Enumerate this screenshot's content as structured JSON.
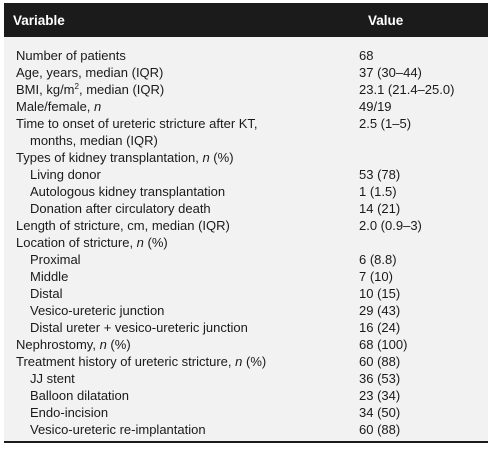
{
  "table": {
    "headers": {
      "variable": "Variable",
      "value": "Value"
    },
    "rows": [
      {
        "label": "Number of patients",
        "value": "68"
      },
      {
        "label_pre": "Age, years, median (IQR)",
        "value": "37 (30–44)"
      },
      {
        "label_pre": "BMI, kg/m",
        "label_sup": "2",
        "label_post": ", median (IQR)",
        "value": "23.1 (21.4–25.0)"
      },
      {
        "label_pre": "Male/female, ",
        "label_italic": "n",
        "value": "49/19"
      },
      {
        "label_line1": "Time to onset of ureteric stricture after KT,",
        "label_line2": "months, median (IQR)",
        "value": "2.5 (1–5)"
      },
      {
        "label_pre": "Types of kidney transplantation, ",
        "label_italic": "n",
        "label_post": " (%)",
        "value": ""
      },
      {
        "label": "Living donor",
        "value": "53 (78)"
      },
      {
        "label": "Autologous kidney transplantation",
        "value": "1 (1.5)"
      },
      {
        "label": "Donation after circulatory death",
        "value": "14 (21)"
      },
      {
        "label": "Length of stricture, cm, median (IQR)",
        "value": "2.0 (0.9–3)"
      },
      {
        "label_pre": "Location of stricture, ",
        "label_italic": "n",
        "label_post": " (%)",
        "value": ""
      },
      {
        "label": "Proximal",
        "value": "6 (8.8)"
      },
      {
        "label": "Middle",
        "value": "7 (10)"
      },
      {
        "label": "Distal",
        "value": "10 (15)"
      },
      {
        "label": "Vesico-ureteric junction",
        "value": "29 (43)"
      },
      {
        "label": "Distal ureter + vesico-ureteric junction",
        "value": "16 (24)"
      },
      {
        "label_pre": "Nephrostomy, ",
        "label_italic": "n",
        "label_post": " (%)",
        "value": "68 (100)"
      },
      {
        "label_pre": "Treatment history of ureteric stricture, ",
        "label_italic": "n",
        "label_post": " (%)",
        "value": "60 (88)"
      },
      {
        "label": "JJ stent",
        "value": "36 (53)"
      },
      {
        "label": "Balloon dilatation",
        "value": "23 (34)"
      },
      {
        "label": "Endo-incision",
        "value": "34 (50)"
      },
      {
        "label": "Vesico-ureteric re-implantation",
        "value": "60 (88)"
      }
    ]
  }
}
